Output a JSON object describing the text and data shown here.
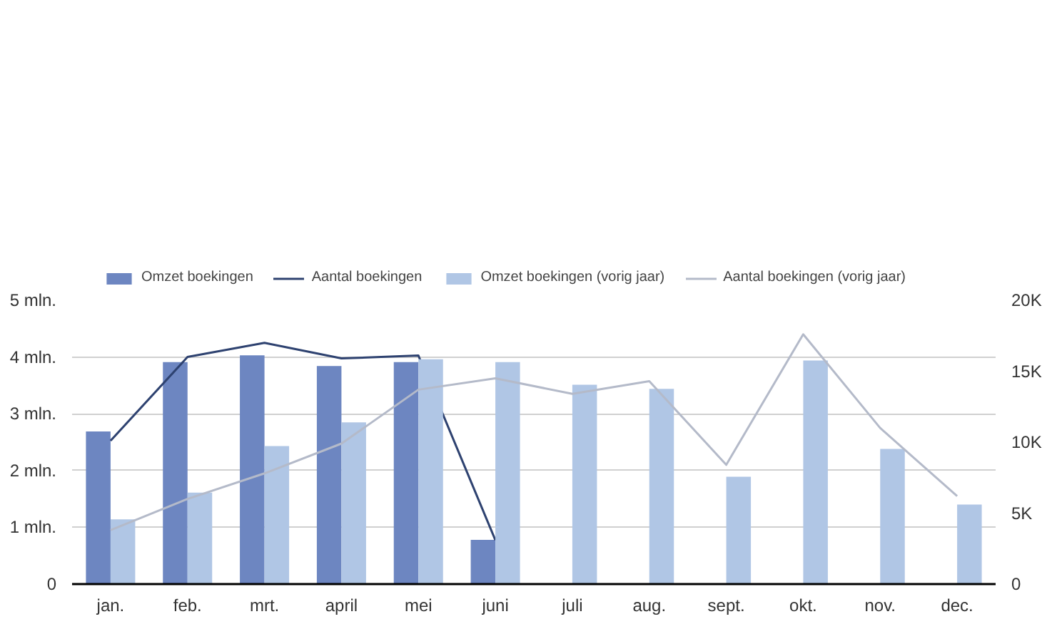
{
  "chart_data": {
    "type": "bar",
    "categories": [
      "jan.",
      "feb.",
      "mrt.",
      "april",
      "mei",
      "juni",
      "juli",
      "aug.",
      "sept.",
      "okt.",
      "nov.",
      "dec."
    ],
    "series": [
      {
        "name": "Omzet boekingen",
        "color": "#6d86c1",
        "values": [
          2.69,
          3.91,
          4.03,
          3.84,
          3.91,
          0.78,
          null,
          null,
          null,
          null,
          null,
          null
        ]
      },
      {
        "name": "Aantal boekingen",
        "type": "line",
        "axis": "y2",
        "color": "#2e4270",
        "values": [
          10100,
          16000,
          17000,
          15900,
          16100,
          3100,
          null,
          null,
          null,
          null,
          null,
          null
        ]
      },
      {
        "name": "Omzet boekingen (vorig jaar)",
        "color": "#b0c6e5",
        "values": [
          1.14,
          1.61,
          2.43,
          2.85,
          3.96,
          3.91,
          3.51,
          3.44,
          1.89,
          3.94,
          2.38,
          1.4
        ]
      },
      {
        "name": "Aantal boekingen (vorig jaar)",
        "type": "line",
        "axis": "y2",
        "color": "#b4bac9",
        "values": [
          3800,
          6000,
          7800,
          9900,
          13700,
          14500,
          13400,
          14300,
          8400,
          17600,
          11000,
          6200
        ]
      }
    ],
    "ylim": [
      0,
      5
    ],
    "yticks": [
      {
        "value": 0,
        "label": "0"
      },
      {
        "value": 1,
        "label": "1 mln."
      },
      {
        "value": 2,
        "label": "2 mln."
      },
      {
        "value": 3,
        "label": "3 mln."
      },
      {
        "value": 4,
        "label": "4 mln."
      },
      {
        "value": 5,
        "label": "5 mln."
      }
    ],
    "y2lim": [
      0,
      20000
    ],
    "y2ticks": [
      {
        "value": 0,
        "label": "0"
      },
      {
        "value": 5000,
        "label": "5K"
      },
      {
        "value": 10000,
        "label": "10K"
      },
      {
        "value": 15000,
        "label": "15K"
      },
      {
        "value": 20000,
        "label": "20K"
      }
    ],
    "grid": "y",
    "legend": "top left",
    "line_style": "solid",
    "marker": "none"
  }
}
